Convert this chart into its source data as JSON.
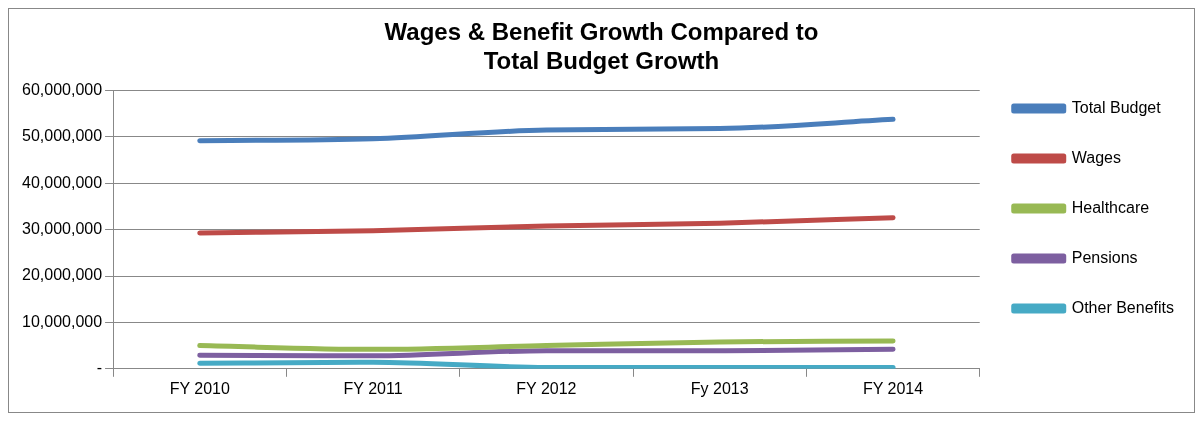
{
  "chart_data": {
    "type": "line",
    "title": "Wages & Benefit Growth Compared to Total Budget Growth",
    "categories": [
      "FY 2010",
      "FY 2011",
      "FY 2012",
      "Fy 2013",
      "FY 2014"
    ],
    "series": [
      {
        "name": "Total Budget",
        "color": "#4a7ebb",
        "values": [
          49200000,
          49600000,
          51500000,
          51800000,
          53800000
        ]
      },
      {
        "name": "Wages",
        "color": "#be4b48",
        "values": [
          29300000,
          29800000,
          30800000,
          31400000,
          32600000
        ]
      },
      {
        "name": "Healthcare",
        "color": "#98b954",
        "values": [
          5000000,
          4200000,
          5000000,
          5800000,
          6000000
        ]
      },
      {
        "name": "Pensions",
        "color": "#7d5fa0",
        "values": [
          2900000,
          2800000,
          3900000,
          3900000,
          4200000
        ]
      },
      {
        "name": "Other Benefits",
        "color": "#46aac5",
        "values": [
          1200000,
          1400000,
          300000,
          300000,
          300000
        ]
      }
    ],
    "ylim": [
      0,
      60000000
    ],
    "yticks": [
      {
        "value": 0,
        "label": "-"
      },
      {
        "value": 10000000,
        "label": "10,000,000"
      },
      {
        "value": 20000000,
        "label": "20,000,000"
      },
      {
        "value": 30000000,
        "label": "30,000,000"
      },
      {
        "value": 40000000,
        "label": "40,000,000"
      },
      {
        "value": 50000000,
        "label": "50,000,000"
      },
      {
        "value": 60000000,
        "label": "60,000,000"
      }
    ],
    "grid": "y",
    "legend": "right",
    "marker": "none",
    "line_style": "solid"
  }
}
